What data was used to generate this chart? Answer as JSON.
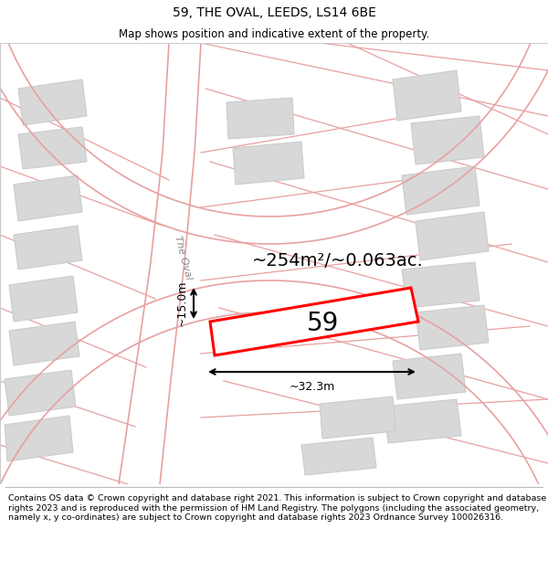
{
  "title": "59, THE OVAL, LEEDS, LS14 6BE",
  "subtitle": "Map shows position and indicative extent of the property.",
  "footer": "Contains OS data © Crown copyright and database right 2021. This information is subject to Crown copyright and database rights 2023 and is reproduced with the permission of HM Land Registry. The polygons (including the associated geometry, namely x, y co-ordinates) are subject to Crown copyright and database rights 2023 Ordnance Survey 100026316.",
  "area_text": "~254m²/~0.063ac.",
  "number_label": "59",
  "dim_width": "~32.3m",
  "dim_height": "~15.0m",
  "street_label": "The Oval",
  "bg_color": "#ffffff",
  "map_bg": "#f7f7f7",
  "road_line_color": "#e8a0a0",
  "building_fill": "#d8d8d8",
  "building_edge": "#cccccc",
  "plot_fill": "#ffffff",
  "plot_edge": "#ff0000",
  "title_fontsize": 10,
  "subtitle_fontsize": 8.5,
  "footer_fontsize": 6.8,
  "area_fontsize": 14,
  "number_fontsize": 20,
  "dim_fontsize": 9,
  "street_fontsize": 8
}
